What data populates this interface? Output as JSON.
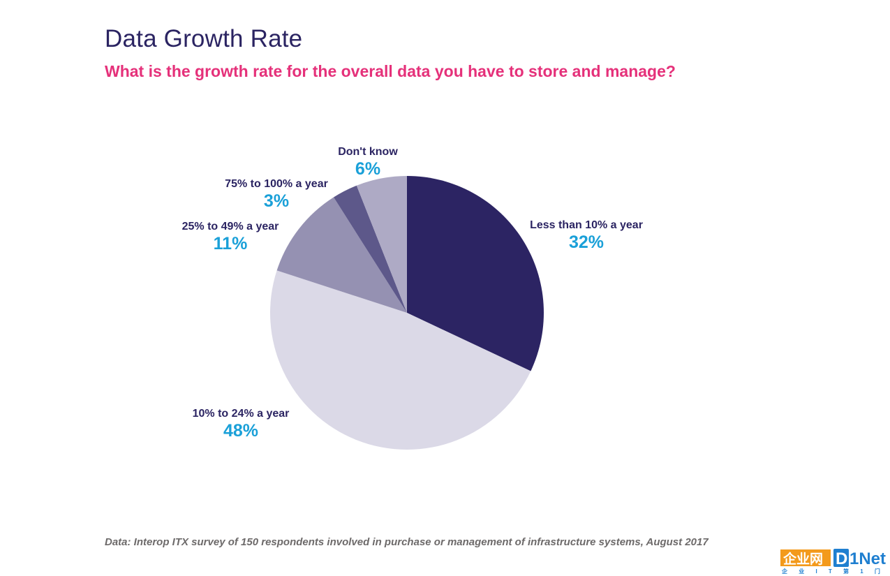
{
  "title": "Data Growth Rate",
  "subtitle": "What is the growth rate for the overall data you have to store and manage?",
  "source": "Data: Interop ITX survey of 150 respondents involved in purchase or management of infrastructure systems, August 2017",
  "logo": {
    "brand": "企业网",
    "brand_latin": "D1Net",
    "tagline": "企 业 I T 第 1 门 户"
  },
  "colors": {
    "title": "#2b2462",
    "subtitle": "#e5317a",
    "label": "#2b2462",
    "value": "#1aa0d8"
  },
  "chart_data": {
    "type": "pie",
    "title": "",
    "start_angle_deg": 0,
    "direction": "clockwise",
    "slices": [
      {
        "label": "Less than 10% a year",
        "value": 32,
        "display": "32%",
        "color": "#2c2463"
      },
      {
        "label": "10% to 24% a year",
        "value": 48,
        "display": "48%",
        "color": "#dbd9e7"
      },
      {
        "label": "25% to 49% a year",
        "value": 11,
        "display": "11%",
        "color": "#9591b2"
      },
      {
        "label": "75% to 100% a year",
        "value": 3,
        "display": "3%",
        "color": "#5d588a"
      },
      {
        "label": "Don't know",
        "value": 6,
        "display": "6%",
        "color": "#aeaac5"
      }
    ]
  }
}
